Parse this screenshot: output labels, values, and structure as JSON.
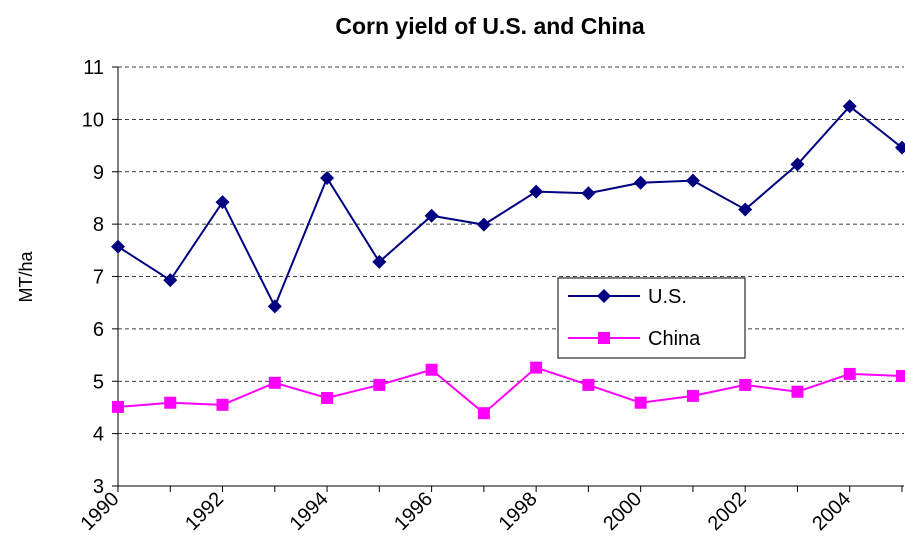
{
  "chart_data": {
    "type": "line",
    "title": "Corn yield of U.S. and China",
    "ylabel": "MT/ha",
    "categories": [
      "1990",
      null,
      "1992",
      null,
      "1994",
      null,
      "1996",
      null,
      "1998",
      null,
      "2000",
      null,
      "2002",
      null,
      "2004",
      null
    ],
    "series": [
      {
        "name": "U.S.",
        "color": "#000080",
        "marker": "diamond",
        "values": [
          7.57,
          6.93,
          8.42,
          6.43,
          8.88,
          7.28,
          8.16,
          7.99,
          8.62,
          8.59,
          8.79,
          8.83,
          8.28,
          9.14,
          10.25,
          9.46
        ]
      },
      {
        "name": "China",
        "color": "#ff00ff",
        "marker": "square",
        "values": [
          4.51,
          4.59,
          4.55,
          4.97,
          4.68,
          4.93,
          5.22,
          4.39,
          5.26,
          4.93,
          4.59,
          4.72,
          4.93,
          4.8,
          5.14,
          5.1
        ]
      }
    ],
    "ylim": [
      3,
      11
    ],
    "yticks": [
      3,
      4,
      5,
      6,
      7,
      8,
      9,
      10,
      11
    ],
    "grid": true
  }
}
